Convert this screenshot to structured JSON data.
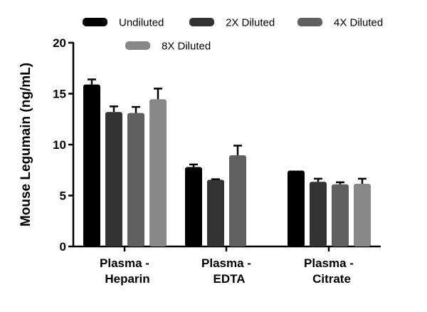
{
  "chart_data": {
    "type": "bar",
    "title": "",
    "xlabel": "",
    "ylabel": "Mouse Legumain (ng/mL)",
    "ylim": [
      0,
      20
    ],
    "yticks": [
      0,
      5,
      10,
      15,
      20
    ],
    "categories": [
      [
        "Plasma -",
        "Heparin"
      ],
      [
        "Plasma -",
        "EDTA"
      ],
      [
        "Plasma -",
        "Citrate"
      ]
    ],
    "legend_position": "top",
    "series": [
      {
        "name": "Undiluted",
        "color": "#000000",
        "values": [
          15.9,
          7.8,
          7.45
        ],
        "error": [
          0.5,
          0.25,
          0
        ]
      },
      {
        "name": "2X Diluted",
        "color": "#333333",
        "values": [
          13.2,
          6.55,
          6.35
        ],
        "error": [
          0.55,
          0.05,
          0.3
        ]
      },
      {
        "name": "4X Diluted",
        "color": "#606060",
        "values": [
          13.1,
          8.95,
          6.1
        ],
        "error": [
          0.6,
          0.95,
          0.2
        ]
      },
      {
        "name": "8X Diluted",
        "color": "#888888",
        "values": [
          14.45,
          null,
          6.15
        ],
        "error": [
          1.05,
          null,
          0.5
        ]
      }
    ]
  }
}
